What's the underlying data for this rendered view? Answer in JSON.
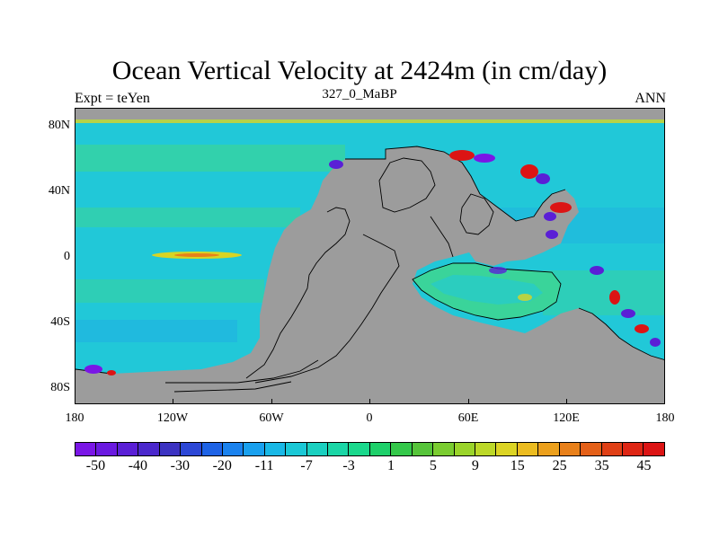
{
  "title": "Ocean Vertical Velocity at 2424m (in cm/day)",
  "subtitle": "327_0_MaBP",
  "left_label": "Expt = teYen",
  "right_label": "ANN",
  "y_ticks": [
    "80N",
    "40N",
    "0",
    "40S",
    "80S"
  ],
  "x_ticks": [
    "180",
    "120W",
    "60W",
    "0",
    "60E",
    "120E",
    "180"
  ],
  "colorbar": {
    "labels": [
      "-50",
      "-40",
      "-30",
      "-20",
      "-11",
      "-7",
      "-3",
      "1",
      "5",
      "9",
      "15",
      "25",
      "35",
      "45"
    ],
    "colors": [
      "#7a16e6",
      "#6a19e0",
      "#5a1fd6",
      "#4b28cc",
      "#3c33c2",
      "#2c47d6",
      "#1e63e6",
      "#1a82ee",
      "#19a0ee",
      "#19b8e6",
      "#1ac8d6",
      "#1ad0c0",
      "#1ad6a6",
      "#1ad88c",
      "#1ed06a",
      "#34c84a",
      "#56c43a",
      "#7acc30",
      "#9ad42a",
      "#bcd828",
      "#dcd424",
      "#ecbc20",
      "#eca01c",
      "#e8801a",
      "#e46018",
      "#e04016",
      "#de2614",
      "#dc1414"
    ]
  },
  "colors": {
    "land": "#9c9c9c",
    "ocean_base": "#21c8d8",
    "ocean_green": "#3ad49a",
    "ocean_blue": "#1fa8e6",
    "frame": "#000000"
  }
}
